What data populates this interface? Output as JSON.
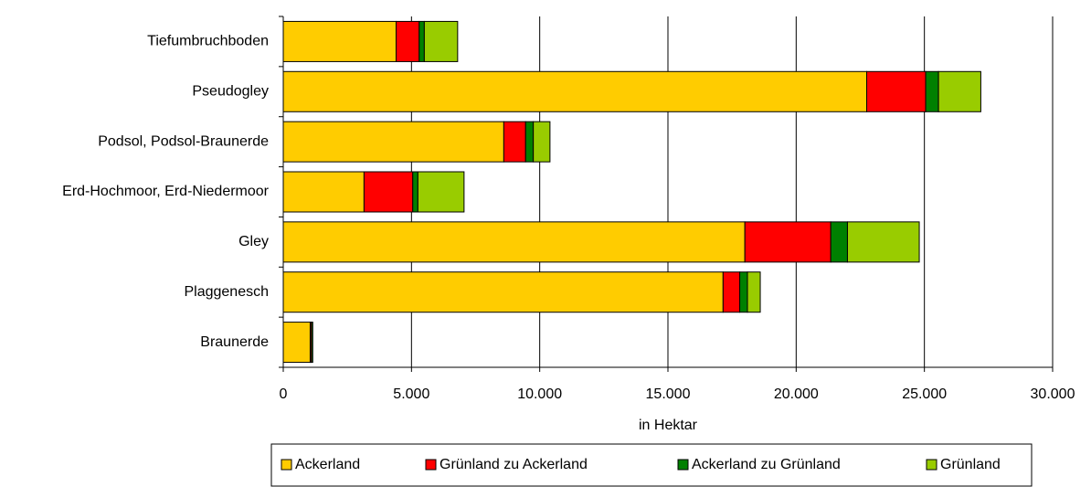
{
  "chart_data": {
    "type": "stacked-bar-horizontal",
    "x_label": "in Hektar",
    "categories": [
      "Tiefumbruchboden",
      "Pseudogley",
      "Podsol, Podsol-Braunerde",
      "Erd-Hochmoor, Erd-Niedermoor",
      "Gley",
      "Plaggenesch",
      "Braunerde"
    ],
    "series": [
      {
        "name": "Ackerland",
        "color": "#ffcc00",
        "values": [
          4400,
          22750,
          8600,
          3150,
          18000,
          17150,
          1050
        ]
      },
      {
        "name": "Grünland zu Ackerland",
        "color": "#ff0000",
        "values": [
          900,
          2300,
          850,
          1900,
          3350,
          650,
          50
        ]
      },
      {
        "name": "Ackerland zu Grünland",
        "color": "#008000",
        "values": [
          200,
          500,
          300,
          200,
          650,
          300,
          50
        ]
      },
      {
        "name": "Grünland",
        "color": "#99cc00",
        "values": [
          1300,
          1650,
          650,
          1800,
          2800,
          500,
          0
        ]
      }
    ],
    "xlim": [
      0,
      30000
    ],
    "xticks": [
      0,
      {
        "value": 5000,
        "label": "5.000"
      },
      {
        "value": 10000,
        "label": "10.000"
      },
      {
        "value": 15000,
        "label": "15.000"
      },
      {
        "value": 20000,
        "label": "20.000"
      },
      {
        "value": 25000,
        "label": "25.000"
      },
      {
        "value": 30000,
        "label": "30.000"
      }
    ],
    "grid": true,
    "legend": "bottom"
  }
}
